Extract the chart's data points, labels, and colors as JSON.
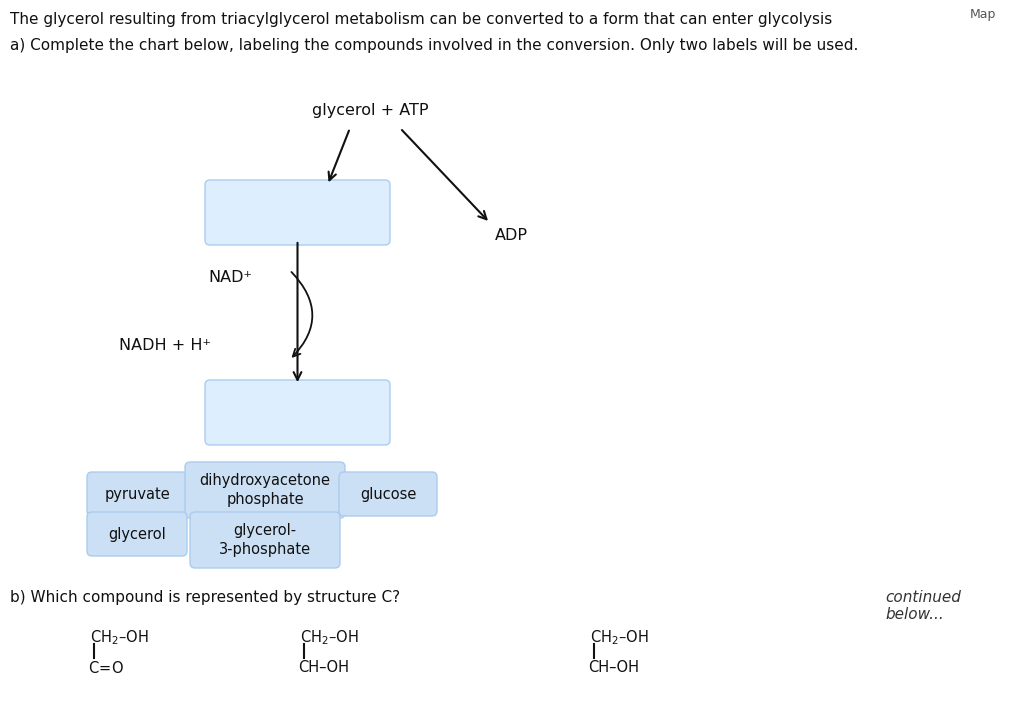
{
  "bg_color": "#ffffff",
  "title_line1": "The glycerol resulting from triacylglycerol metabolism can be converted to a form that can enter glycolysis",
  "title_line2": "a) Complete the chart below, labeling the compounds involved in the conversion. Only two labels will be used.",
  "map_text": "Map",
  "glycerol_atp_label": "glycerol + ATP",
  "adp_label": "ADP",
  "nad_label": "NAD⁺",
  "nadh_label": "NADH + H⁺",
  "box_color": "#ddeeff",
  "box_edge_color": "#aaccee",
  "label_bg_color": "#cce0f5",
  "label_edge_color": "#aaccee",
  "section_b_text": "b) Which compound is represented by structure C?",
  "continued_text": "continued\nbelow...",
  "arrow_color": "#111111",
  "font_size_main": 11.5
}
